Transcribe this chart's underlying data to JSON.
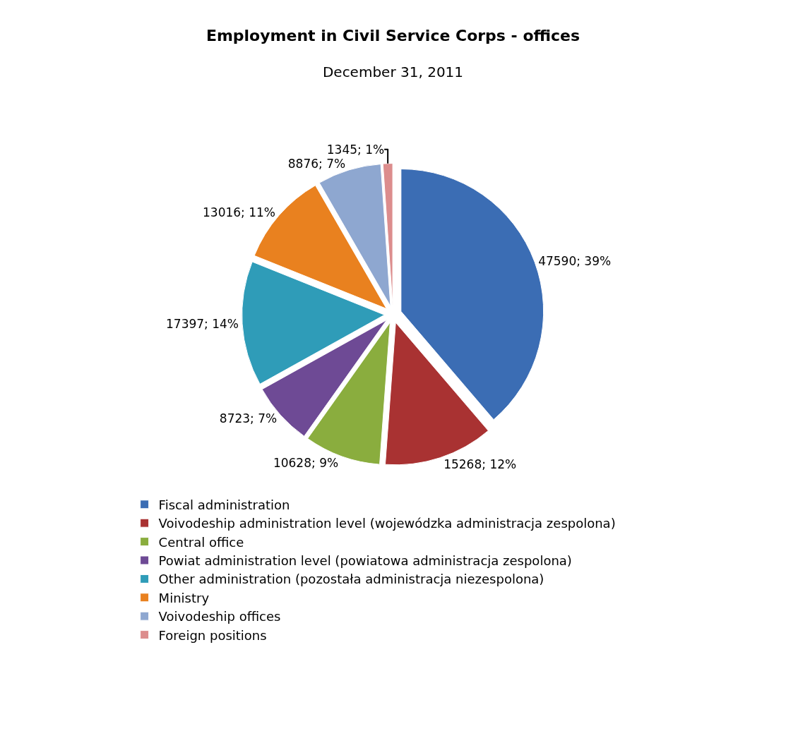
{
  "chart_data": {
    "type": "pie",
    "title": "Employment in Civil Service Corps - offices",
    "subtitle": "December 31, 2011",
    "categories": [
      "Fiscal administration",
      "Voivodeship administration level (wojewódzka administracja zespolona)",
      "Central office",
      "Powiat administration level (powiatowa administracja zespolona)",
      "Other administration (pozostała administracja niezespolona)",
      "Ministry",
      "Voivodeship offices",
      "Foreign positions"
    ],
    "values": [
      47590,
      15268,
      10628,
      8723,
      17397,
      13016,
      8876,
      1345
    ],
    "value_labels": [
      "47590; 39%",
      "15268; 12%",
      "10628; 9%",
      "8723; 7%",
      "17397; 14%",
      "13016; 11%",
      "8876; 7%",
      "1345; 1%"
    ],
    "colors": [
      "#3b6db4",
      "#a93232",
      "#8aad3e",
      "#6e4a95",
      "#2f9cb8",
      "#e9811f",
      "#8ea7d0",
      "#dc8d8d"
    ],
    "legend": "bottom"
  }
}
